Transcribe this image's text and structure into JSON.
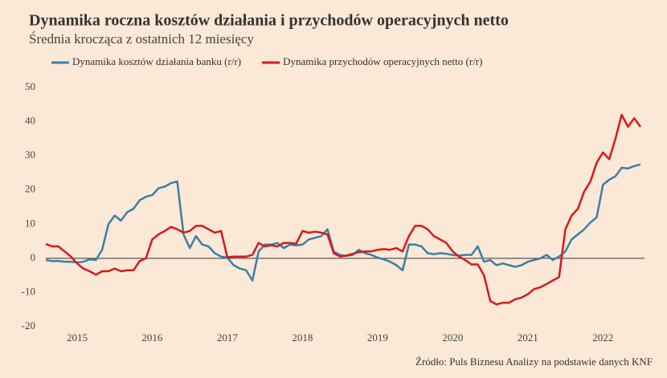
{
  "chart_data": {
    "type": "line",
    "title": "Dynamika roczna kosztów działania i przychodów operacyjnych netto",
    "subtitle": "Średnia krocząca z ostatnich 12 miesięcy",
    "source": "Źródło: Puls Biznesu Analizy na podstawie danych KNF",
    "categories": [
      null,
      null,
      null,
      null,
      null,
      "2015",
      null,
      null,
      null,
      null,
      null,
      null,
      null,
      null,
      null,
      null,
      null,
      "2016",
      null,
      null,
      null,
      null,
      null,
      null,
      null,
      null,
      null,
      null,
      null,
      "2017",
      null,
      null,
      null,
      null,
      null,
      null,
      null,
      null,
      null,
      null,
      null,
      "2018",
      null,
      null,
      null,
      null,
      null,
      null,
      null,
      null,
      null,
      null,
      null,
      "2019",
      null,
      null,
      null,
      null,
      null,
      null,
      null,
      null,
      null,
      null,
      null,
      "2020",
      null,
      null,
      null,
      null,
      null,
      null,
      null,
      null,
      null,
      null,
      null,
      "2021",
      null,
      null,
      null,
      null,
      null,
      null,
      null,
      null,
      null,
      null,
      null,
      "2022",
      null,
      null,
      null,
      null,
      null,
      null
    ],
    "series": [
      {
        "name": "Dynamika kosztów działania banku (r/r)",
        "color": "#3b7fa6",
        "values": [
          -0.5,
          -0.8,
          -0.8,
          -1,
          -1,
          -1.2,
          -1,
          -0.3,
          -0.5,
          2.5,
          10,
          12.5,
          11,
          13.5,
          14.5,
          17,
          18,
          18.5,
          20.5,
          21,
          22,
          22.5,
          7,
          3,
          6.5,
          4,
          3.5,
          1.5,
          0.5,
          0.2,
          -2,
          -3,
          -3.5,
          -6.5,
          2,
          4,
          4,
          4.5,
          3,
          4,
          3.8,
          4,
          5.5,
          6,
          6.5,
          8.5,
          2,
          1,
          0.7,
          1,
          2.5,
          1.5,
          1,
          0.2,
          -0.3,
          -1,
          -2,
          -3.5,
          4,
          4,
          3.5,
          1.5,
          1.2,
          1.5,
          1.3,
          1,
          0.8,
          1,
          1,
          3.5,
          -1,
          -0.5,
          -2,
          -1.5,
          -2,
          -2.5,
          -2,
          -1,
          -0.5,
          0,
          1,
          -0.5,
          0.5,
          2,
          5.5,
          7,
          8.5,
          10.5,
          12,
          21.5,
          23,
          24,
          26.5,
          26.3,
          27,
          27.5
        ]
      },
      {
        "name": "Dynamika przychodów operacyjnych netto (r/r)",
        "color": "#d7191c",
        "values": [
          4.2,
          3.5,
          3.5,
          2,
          0.5,
          -1.5,
          -3,
          -3.8,
          -4.8,
          -3.8,
          -3.8,
          -3,
          -3.8,
          -3.5,
          -3.5,
          -0.8,
          0,
          5.5,
          7,
          8,
          9.2,
          8.5,
          7.5,
          8,
          9.5,
          9.5,
          8.5,
          7.5,
          8,
          0.3,
          0.5,
          0.5,
          0.5,
          1,
          4.5,
          3.5,
          3.8,
          3.5,
          4.5,
          4.5,
          4.3,
          8,
          7.5,
          7.8,
          7.5,
          7,
          1.5,
          0.5,
          0.8,
          1.3,
          1.8,
          2,
          2,
          2.5,
          2.7,
          2.5,
          3,
          2,
          6.5,
          9.5,
          9.5,
          8.5,
          6.5,
          5.5,
          4.5,
          2,
          0.5,
          -0.5,
          -1.8,
          -1.8,
          -5,
          -12.5,
          -13.5,
          -13,
          -13,
          -12,
          -11.5,
          -10.5,
          -9,
          -8.5,
          -7.5,
          -6.5,
          -5.5,
          8.5,
          12.5,
          14.5,
          19.5,
          22.5,
          28,
          31,
          29,
          35,
          42,
          38.5,
          41,
          38.5
        ]
      }
    ],
    "ylim": [
      -20,
      50
    ],
    "yticks": [
      -20,
      -10,
      0,
      10,
      20,
      30,
      40,
      50
    ],
    "grid": false
  }
}
